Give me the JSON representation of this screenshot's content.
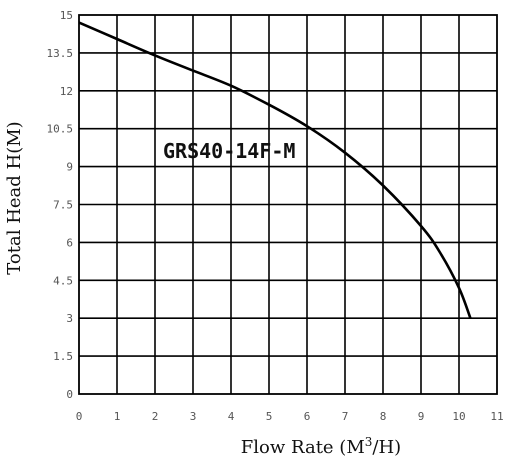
{
  "chart_data": {
    "type": "line",
    "title": "",
    "xlabel": "Flow Rate (M³/H)",
    "ylabel": "Total Head H(M)",
    "xlim": [
      0,
      11
    ],
    "ylim": [
      0,
      15
    ],
    "x_ticks": [
      "0",
      "1",
      "2",
      "3",
      "4",
      "5",
      "6",
      "7",
      "8",
      "9",
      "10",
      "11"
    ],
    "y_ticks": [
      "0",
      "1.5",
      "3",
      "4.5",
      "6",
      "7.5",
      "9",
      "10.5",
      "12",
      "13.5",
      "15"
    ],
    "grid": true,
    "annotations": [
      "GRS40-14F-M"
    ],
    "series": [
      {
        "name": "GRS40-14F-M",
        "x": [
          0,
          1,
          2,
          3,
          4,
          5,
          6,
          7,
          8,
          9,
          9.5,
          10,
          10.3
        ],
        "y": [
          14.7,
          14.05,
          13.4,
          12.8,
          12.2,
          11.45,
          10.6,
          9.55,
          8.25,
          6.65,
          5.6,
          4.2,
          3.0
        ]
      }
    ],
    "colors": {
      "line": "#000000",
      "grid": "#000000",
      "ticks": "#555555"
    }
  }
}
